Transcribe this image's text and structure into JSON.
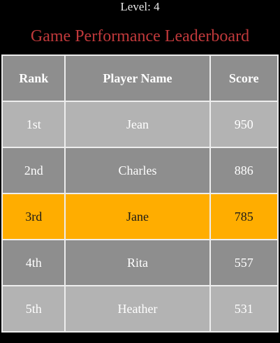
{
  "header": {
    "level": "Level: 4",
    "title": "Game Performance Leaderboard"
  },
  "colors": {
    "title": "#c0393b",
    "header_bg": "#8e8e8e",
    "row_light": "#b3b3b3",
    "row_dark": "#8e8e8e",
    "highlight": "#ffad00"
  },
  "leaderboard": {
    "columns": [
      "Rank",
      "Player Name",
      "Score"
    ],
    "rows": [
      {
        "rank": "1st",
        "name": "Jean",
        "score": "950"
      },
      {
        "rank": "2nd",
        "name": "Charles",
        "score": "886"
      },
      {
        "rank": "3rd",
        "name": "Jane",
        "score": "785",
        "highlighted": true
      },
      {
        "rank": "4th",
        "name": "Rita",
        "score": "557"
      },
      {
        "rank": "5th",
        "name": "Heather",
        "score": "531"
      }
    ]
  }
}
